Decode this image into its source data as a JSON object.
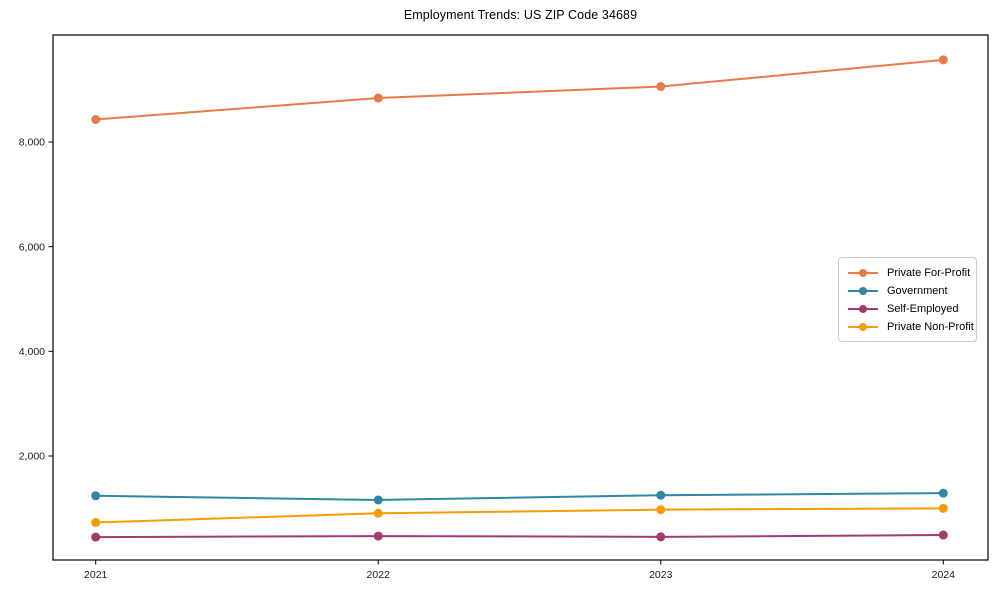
{
  "title": "Employment Trends: US ZIP Code 34689",
  "chart_data": {
    "type": "line",
    "title": "Employment Trends: US ZIP Code 34689",
    "xlabel": "",
    "ylabel": "",
    "categories": [
      "2021",
      "2022",
      "2023",
      "2024"
    ],
    "series": [
      {
        "name": "Private For-Profit",
        "color": "#e8794a",
        "values": [
          8430,
          8840,
          9060,
          9570
        ]
      },
      {
        "name": "Government",
        "color": "#2f87a6",
        "values": [
          1240,
          1160,
          1250,
          1290
        ]
      },
      {
        "name": "Self-Employed",
        "color": "#a23b72",
        "values": [
          450,
          470,
          455,
          490
        ]
      },
      {
        "name": "Private Non-Profit",
        "color": "#f39c05",
        "values": [
          730,
          905,
          975,
          1000
        ]
      }
    ],
    "yticks": [
      2000,
      4000,
      6000,
      8000
    ],
    "ytick_labels": [
      "2,000",
      "4,000",
      "6,000",
      "8,000"
    ],
    "ylim": [
      0,
      10060
    ],
    "grid": false,
    "legend_position": "center-right"
  },
  "style": {
    "axis_color": "#000000",
    "tick_label_color": "#1a1a1a",
    "legend_border_color": "#cccccc",
    "background": "#ffffff"
  }
}
